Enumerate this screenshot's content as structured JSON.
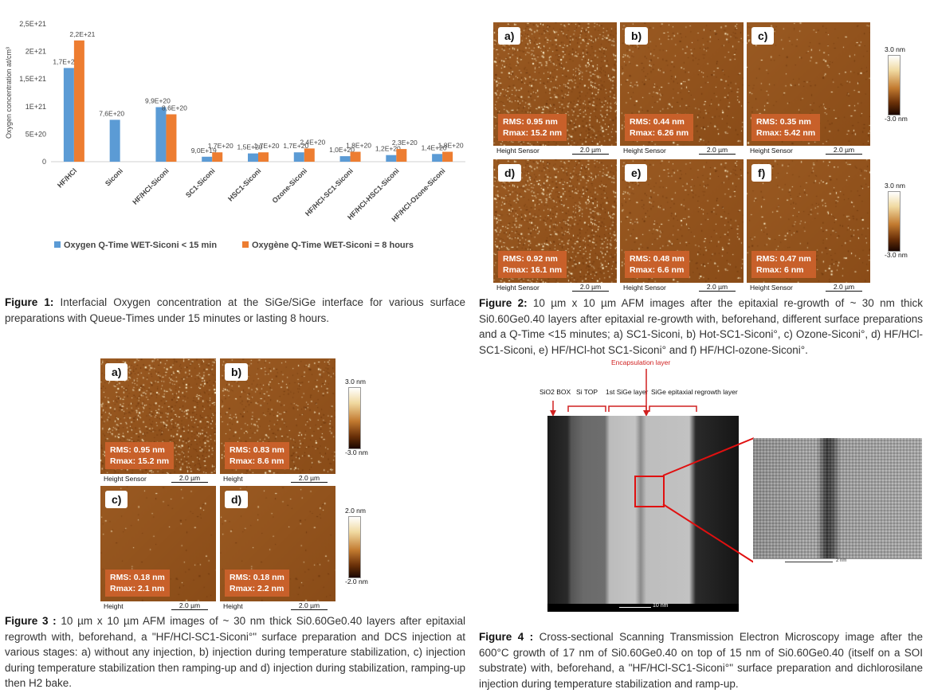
{
  "figure1": {
    "caption_label": "Figure 1:",
    "caption_text": " Interfacial Oxygen concentration at the SiGe/SiGe interface for various surface preparations with Queue-Times under 15 minutes or lasting 8 hours."
  },
  "figure2": {
    "caption_label": "Figure 2:",
    "caption_text": " 10 µm x 10 µm AFM images after the epitaxial re-growth of ~ 30 nm thick Si0.60Ge0.40 layers after epitaxial re-growth with, beforehand, different surface preparations and a Q-Time <15 minutes; a) SC1-Siconi, b) Hot-SC1-Siconi°, c) Ozone-Siconi°, d) HF/HCl-SC1-Siconi, e) HF/HCl-hot SC1-Siconi° and f) HF/HCl-ozone-Siconi°.",
    "panels": [
      {
        "label": "a)",
        "rms": "RMS: 0.95 nm",
        "rmax": "Rmax: 15.2 nm",
        "sensor": "Height Sensor",
        "scale": "2.0 µm"
      },
      {
        "label": "b)",
        "rms": "RMS: 0.44 nm",
        "rmax": "Rmax: 6.26 nm",
        "sensor": "Height Sensor",
        "scale": "2.0 µm"
      },
      {
        "label": "c)",
        "rms": "RMS: 0.35 nm",
        "rmax": "Rmax: 5.42 nm",
        "sensor": "Height Sensor",
        "scale": "2.0 µm"
      },
      {
        "label": "d)",
        "rms": "RMS: 0.92 nm",
        "rmax": "Rmax: 16.1 nm",
        "sensor": "Height Sensor",
        "scale": "2.0 µm"
      },
      {
        "label": "e)",
        "rms": "RMS: 0.48 nm",
        "rmax": "Rmax: 6.6 nm",
        "sensor": "Height Sensor",
        "scale": "2.0 µm"
      },
      {
        "label": "f)",
        "rms": "RMS: 0.47 nm",
        "rmax": "Rmax: 6 nm",
        "sensor": "Height Sensor",
        "scale": "2.0 µm"
      }
    ],
    "colorbar_top": "3.0 nm",
    "colorbar_bottom": "-3.0 nm"
  },
  "figure3": {
    "caption_label": "Figure 3 :",
    "caption_text": " 10 µm x 10 µm AFM images of ~ 30 nm thick Si0.60Ge0.40 layers after epitaxial regrowth with, beforehand, a \"HF/HCl-SC1-Siconi°\" surface preparation and DCS injection at various stages: a) without any injection, b) injection during temperature stabilization, c) injection during temperature stabilization then ramping-up and d) injection during stabilization, ramping-up then H2 bake.",
    "panels": [
      {
        "label": "a)",
        "rms": "RMS: 0.95 nm",
        "rmax": "Rmax: 15.2 nm",
        "sensor": "Height Sensor",
        "scale": "2.0 µm"
      },
      {
        "label": "b)",
        "rms": "RMS: 0.83 nm",
        "rmax": "Rmax: 8.6 nm",
        "sensor": "Height",
        "scale": "2.0 µm"
      },
      {
        "label": "c)",
        "rms": "RMS: 0.18 nm",
        "rmax": "Rmax: 2.1 nm",
        "sensor": "Height",
        "scale": "2.0 µm"
      },
      {
        "label": "d)",
        "rms": "RMS: 0.18 nm",
        "rmax": "Rmax: 2.2 nm",
        "sensor": "Height",
        "scale": "2.0 µm"
      }
    ],
    "colorbar1_top": "3.0 nm",
    "colorbar1_bottom": "-3.0 nm",
    "colorbar2_top": "2.0 nm",
    "colorbar2_bottom": "-2.0 nm"
  },
  "figure4": {
    "caption_label": "Figure 4 :",
    "caption_text": " Cross-sectional Scanning Transmission Electron Microscopy image after the 600°C growth of 17 nm of Si0.60Ge0.40 on top of 15 nm of Si0.60Ge0.40 (itself on a SOI substrate) with, beforehand, a \"HF/HCl-SC1-Siconi°\" surface preparation and dichlorosilane injection during temperature stabilization and ramp-up.",
    "encapsulation": "Encapsulation layer",
    "box": "SiO2 BOX",
    "sitop": "Si TOP",
    "first_sige": "1st SiGe layer",
    "regrowth": "SiGe epitaxial regrowth layer",
    "scale": "10 nm",
    "zoom_scale": "2 nm"
  },
  "chart_data": {
    "type": "bar",
    "ylabel": "Oxygen concentration at/cm³",
    "ylim": [
      0,
      2.5e+21
    ],
    "yticks": [
      "0",
      "5E+20",
      "1E+21",
      "1,5E+21",
      "2E+21",
      "2,5E+21"
    ],
    "categories": [
      "HF/HCl",
      "Siconi",
      "HF/HCl-Siconi",
      "SC1-Siconi",
      "HSC1-Siconi",
      "Ozone-Siconi",
      "HF/HCl-SC1-Siconi",
      "HF/HCl-HSC1-Siconi",
      "HF/HCl-Ozone-Siconi"
    ],
    "series": [
      {
        "name": "Oxygen Q-Time WET-Siconi < 15 min",
        "color": "#5b9bd5",
        "values": [
          1.7e+21,
          7.6e+20,
          9.9e+20,
          9e+19,
          1.5e+20,
          1.7e+20,
          1e+20,
          1.2e+20,
          1.4e+20
        ],
        "labels": [
          "1,7E+21",
          "7,6E+20",
          "9,9E+20",
          "9,0E+19",
          "1,5E+20",
          "1,7E+20",
          "1,0E+20",
          "1,2E+20",
          "1,4E+20"
        ]
      },
      {
        "name": "Oxygène Q-Time WET-Siconi = 8 hours",
        "color": "#ed7d31",
        "values": [
          2.2e+21,
          null,
          8.6e+20,
          1.7e+20,
          1.7e+20,
          2.4e+20,
          1.8e+20,
          2.3e+20,
          1.8e+20
        ],
        "labels": [
          "2,2E+21",
          "",
          "8,6E+20",
          "1,7E+20",
          "1,7E+20",
          "2,4E+20",
          "1,8E+20",
          "2,3E+20",
          "1,8E+20"
        ]
      }
    ],
    "legend_position": "bottom",
    "grid": false
  }
}
